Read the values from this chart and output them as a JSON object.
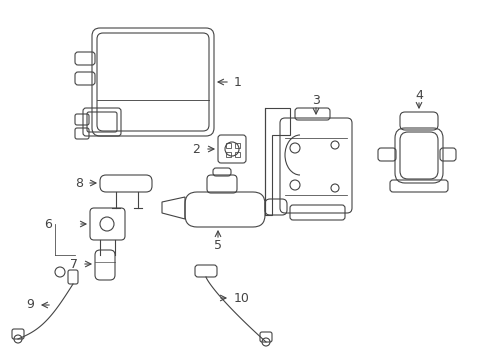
{
  "background": "#ffffff",
  "line_color": "#444444",
  "lw": 0.8,
  "fig_w": 4.89,
  "fig_h": 3.6
}
